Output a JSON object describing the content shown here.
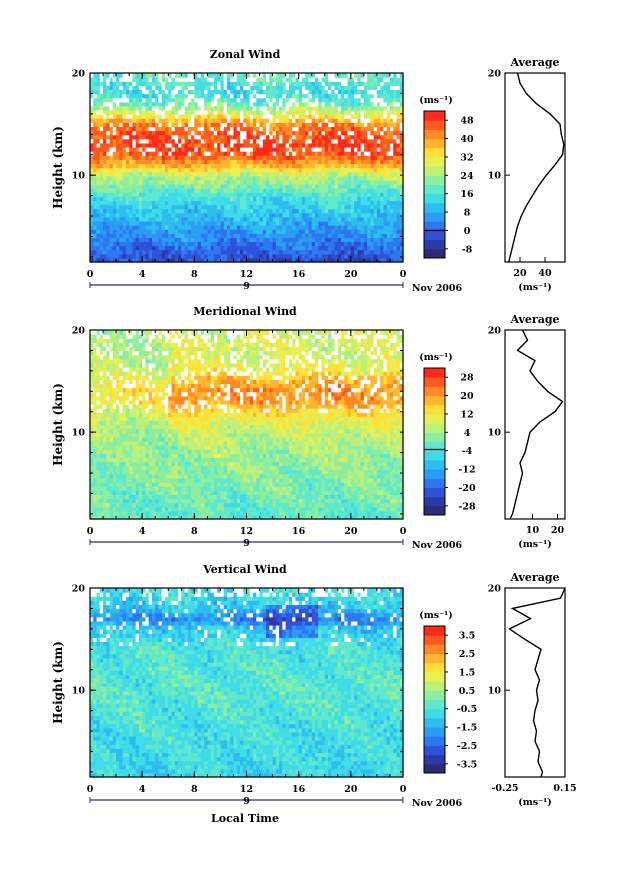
{
  "figure": {
    "xlabel": "Local Time",
    "date_label": "Nov 2006",
    "day_label": "9",
    "unit_label": "(ms⁻¹)",
    "avg_title": "Average",
    "ylabel": "Height (km)",
    "colors": {
      "red": "#ff2a1a",
      "orange": "#ff9a20",
      "yellow": "#ffe93a",
      "green": "#9ee86a",
      "cyan": "#3fe0e6",
      "blue": "#2a8cff",
      "navy": "#22286a",
      "missing": "#ffffff"
    }
  },
  "chart_data": [
    {
      "type": "heatmap",
      "title": "Zonal Wind",
      "ylabel": "Height (km)",
      "xlabel": "",
      "xlim": [
        0,
        24
      ],
      "ylim": [
        1.5,
        20
      ],
      "xticks": [
        "0",
        "4",
        "8",
        "12",
        "16",
        "20",
        "0"
      ],
      "yticks": [
        "10",
        "20"
      ],
      "colorbar": {
        "unit": "(ms⁻¹)",
        "ticks": [
          "-8",
          "0",
          "8",
          "16",
          "24",
          "32",
          "40",
          "48"
        ],
        "range": [
          -12,
          52
        ]
      },
      "profile_by_height": {
        "height": [
          2,
          4,
          6,
          8,
          10,
          11,
          12,
          13,
          14,
          15,
          16,
          17,
          18,
          19,
          20
        ],
        "value": [
          -2,
          4,
          10,
          16,
          26,
          38,
          46,
          48,
          47,
          42,
          30,
          20,
          14,
          16,
          18
        ]
      },
      "average": {
        "title": "Average",
        "xticks": [
          "20",
          "40"
        ],
        "xlim": [
          8,
          56
        ],
        "xlabel": "(ms⁻¹)",
        "height": [
          1.5,
          2,
          3,
          4,
          5,
          6,
          7,
          8,
          9,
          10,
          11,
          12,
          13,
          14,
          15,
          16,
          17,
          18,
          19,
          20
        ],
        "value": [
          11,
          12,
          14,
          16,
          18,
          21,
          25,
          30,
          35,
          41,
          48,
          54,
          55,
          53,
          52,
          44,
          33,
          25,
          20,
          18
        ]
      }
    },
    {
      "type": "heatmap",
      "title": "Meridional Wind",
      "ylabel": "Height (km)",
      "xlabel": "",
      "xlim": [
        0,
        24
      ],
      "ylim": [
        1.5,
        20
      ],
      "xticks": [
        "0",
        "4",
        "8",
        "12",
        "16",
        "20",
        "0"
      ],
      "yticks": [
        "10",
        "20"
      ],
      "colorbar": {
        "unit": "(ms⁻¹)",
        "ticks": [
          "-28",
          "-20",
          "-12",
          "-4",
          "4",
          "12",
          "20",
          "28"
        ],
        "range": [
          -32,
          32
        ]
      },
      "profile_by_height": {
        "height": [
          2,
          4,
          6,
          8,
          10,
          11,
          12,
          13,
          14,
          15,
          16,
          17,
          18,
          19,
          20
        ],
        "value": [
          -2,
          0,
          2,
          4,
          7,
          10,
          14,
          20,
          22,
          18,
          12,
          9,
          8,
          9,
          8
        ],
        "morning_factor": 0.6
      },
      "average": {
        "title": "Average",
        "xticks": [
          "10",
          "20"
        ],
        "xlim": [
          -1,
          23
        ],
        "xlabel": "(ms⁻¹)",
        "height": [
          1.5,
          2,
          3,
          4,
          5,
          6,
          7,
          8,
          9,
          10,
          11,
          12,
          13,
          14,
          15,
          16,
          17,
          18,
          19,
          20
        ],
        "value": [
          1,
          2,
          3,
          4,
          5,
          6,
          5,
          7,
          8,
          9,
          13,
          19,
          22,
          16,
          12,
          9,
          11,
          4,
          8,
          6
        ]
      }
    },
    {
      "type": "heatmap",
      "title": "Vertical Wind",
      "ylabel": "Height (km)",
      "xlabel": "Local Time",
      "xlim": [
        0,
        24
      ],
      "ylim": [
        1.5,
        20
      ],
      "xticks": [
        "0",
        "4",
        "8",
        "12",
        "16",
        "20",
        "0"
      ],
      "yticks": [
        "10",
        "20"
      ],
      "colorbar": {
        "unit": "(ms⁻¹)",
        "ticks": [
          "-3.5",
          "-2.5",
          "-1.5",
          "-0.5",
          "0.5",
          "1.5",
          "2.5",
          "3.5"
        ],
        "range": [
          -4,
          4
        ]
      },
      "profile_by_height": {
        "height": [
          2,
          6,
          10,
          14,
          16,
          17,
          18,
          20
        ],
        "value": [
          -0.8,
          -0.6,
          -0.3,
          -0.5,
          -1.0,
          -2.0,
          -1.1,
          -0.6
        ]
      },
      "average": {
        "title": "Average",
        "xticks": [
          "-0.25",
          "0.15"
        ],
        "xlim": [
          -0.25,
          0.15
        ],
        "xlabel": "(ms⁻¹)",
        "height": [
          1.5,
          2,
          3,
          4,
          5,
          6,
          7,
          8,
          9,
          10,
          11,
          12,
          13,
          14,
          15,
          16,
          17,
          18,
          19,
          20
        ],
        "value": [
          -0.01,
          0.0,
          -0.03,
          -0.02,
          -0.05,
          -0.04,
          -0.06,
          -0.05,
          -0.03,
          -0.04,
          -0.02,
          -0.05,
          -0.03,
          -0.01,
          -0.12,
          -0.22,
          -0.08,
          -0.2,
          0.12,
          0.15
        ]
      }
    }
  ]
}
